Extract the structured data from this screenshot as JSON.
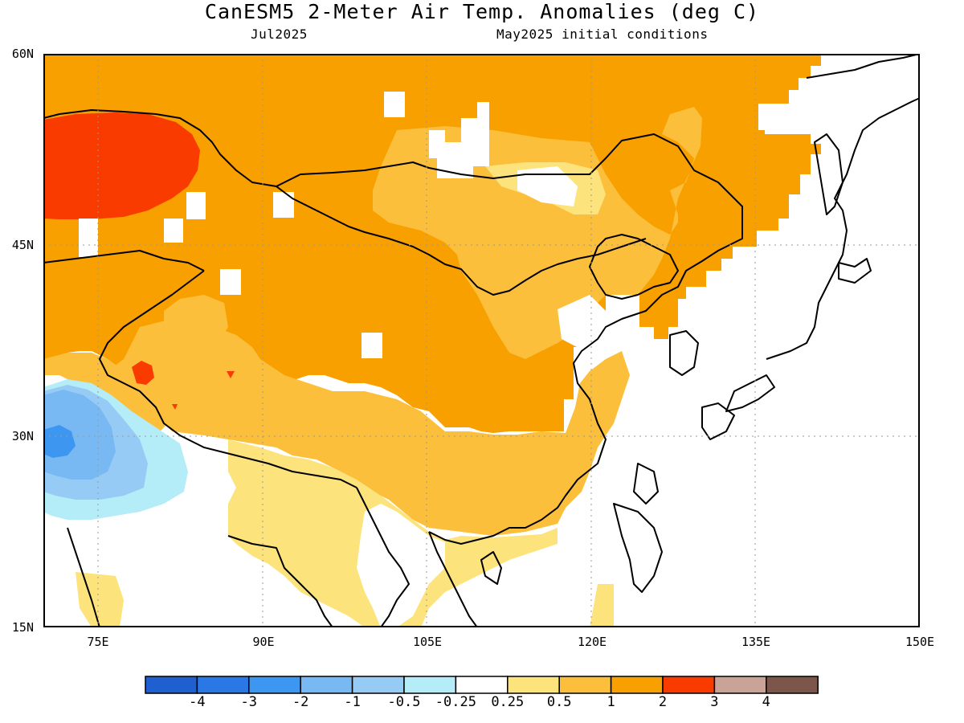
{
  "title": "CanESM5 2-Meter Air Temp. Anomalies (deg C)",
  "subtitle_left": "Jul2025",
  "subtitle_right": "May2025 initial conditions",
  "y_axis": {
    "labels": [
      "60N",
      "45N",
      "30N",
      "15N"
    ],
    "lat_values": [
      60,
      45,
      30,
      15
    ]
  },
  "x_axis": {
    "labels": [
      "75E",
      "90E",
      "105E",
      "120E",
      "135E",
      "150E"
    ],
    "lon_values": [
      75,
      90,
      105,
      120,
      135,
      150
    ]
  },
  "extent": {
    "lon_min": 70,
    "lon_max": 150,
    "lat_min": 15,
    "lat_max": 60
  },
  "grid": true,
  "colorbar": {
    "colors": [
      "#1f5fd0",
      "#2a78e6",
      "#3d96f0",
      "#78b8f3",
      "#96cbf5",
      "#b4ecf7",
      "#ffffff",
      "#fce37c",
      "#fbbf3b",
      "#f7a000",
      "#f93b00",
      "#c9a398",
      "#7c564a"
    ],
    "labels": [
      "-4",
      "-3",
      "-2",
      "-1",
      "-0.5",
      "-0.25",
      "0.25",
      "0.5",
      "1",
      "2",
      "3",
      "4"
    ]
  },
  "palette": {
    "white": "#ffffff",
    "pale_yellow": "#fce37c",
    "light_orange": "#fbbf3b",
    "orange": "#f7a000",
    "red": "#f93b00",
    "light_blue": "#b4ecf7",
    "blue_1": "#96cbf5",
    "blue_2": "#78b8f3",
    "blue_3": "#3d96f0"
  }
}
